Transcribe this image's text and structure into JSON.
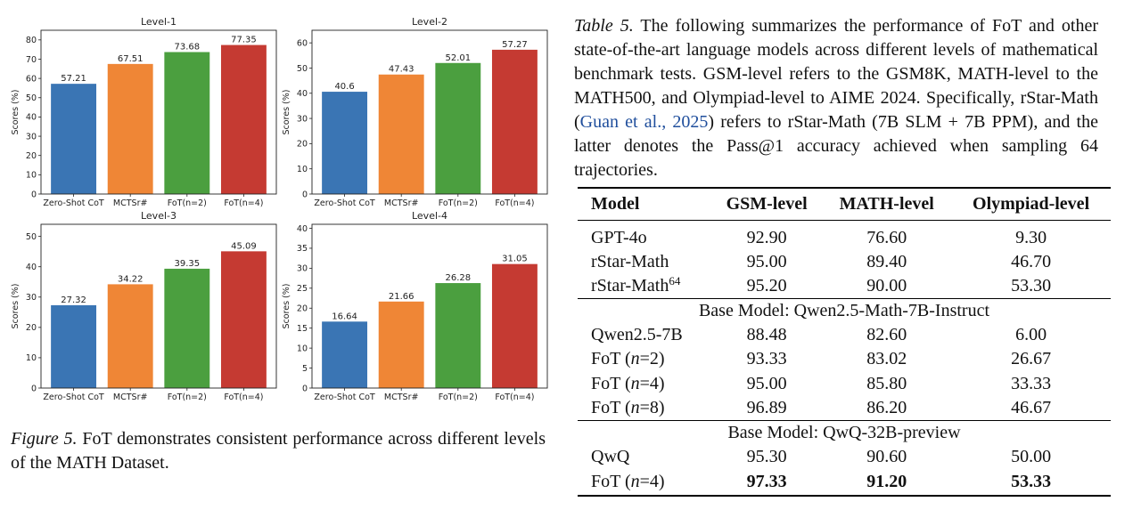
{
  "chart_data": [
    {
      "type": "bar",
      "title": "Level-1",
      "ylabel": "Scores (%)",
      "categories": [
        "Zero-Shot CoT",
        "MCTSr#",
        "FoT(n=2)",
        "FoT(n=4)"
      ],
      "values": [
        57.21,
        67.51,
        73.68,
        77.35
      ],
      "value_labels": [
        "57.21",
        "67.51",
        "73.68",
        "77.35"
      ],
      "colors": [
        "#3a75b4",
        "#ef8636",
        "#4b9f3f",
        "#c53a32"
      ],
      "ylim": [
        0,
        85
      ],
      "yticks": [
        0,
        10,
        20,
        30,
        40,
        50,
        60,
        70,
        80
      ],
      "grid": false
    },
    {
      "type": "bar",
      "title": "Level-2",
      "ylabel": "Scores (%)",
      "categories": [
        "Zero-Shot CoT",
        "MCTSr#",
        "FoT(n=2)",
        "FoT(n=4)"
      ],
      "values": [
        40.6,
        47.43,
        52.01,
        57.27
      ],
      "value_labels": [
        "40.6",
        "47.43",
        "52.01",
        "57.27"
      ],
      "colors": [
        "#3a75b4",
        "#ef8636",
        "#4b9f3f",
        "#c53a32"
      ],
      "ylim": [
        0,
        65
      ],
      "yticks": [
        0,
        10,
        20,
        30,
        40,
        50,
        60
      ],
      "grid": false
    },
    {
      "type": "bar",
      "title": "Level-3",
      "ylabel": "Scores (%)",
      "categories": [
        "Zero-Shot CoT",
        "MCTSr#",
        "FoT(n=2)",
        "FoT(n=4)"
      ],
      "values": [
        27.32,
        34.22,
        39.35,
        45.09
      ],
      "value_labels": [
        "27.32",
        "34.22",
        "39.35",
        "45.09"
      ],
      "colors": [
        "#3a75b4",
        "#ef8636",
        "#4b9f3f",
        "#c53a32"
      ],
      "ylim": [
        0,
        54
      ],
      "yticks": [
        0,
        10,
        20,
        30,
        40,
        50
      ],
      "grid": false
    },
    {
      "type": "bar",
      "title": "Level-4",
      "ylabel": "Scores (%)",
      "categories": [
        "Zero-Shot CoT",
        "MCTSr#",
        "FoT(n=2)",
        "FoT(n=4)"
      ],
      "values": [
        16.64,
        21.66,
        26.28,
        31.05
      ],
      "value_labels": [
        "16.64",
        "21.66",
        "26.28",
        "31.05"
      ],
      "colors": [
        "#3a75b4",
        "#ef8636",
        "#4b9f3f",
        "#c53a32"
      ],
      "ylim": [
        0,
        41
      ],
      "yticks": [
        0,
        5,
        10,
        15,
        20,
        25,
        30,
        35,
        40
      ],
      "grid": false
    }
  ],
  "figure_caption": {
    "lead": "Figure 5.",
    "text": " FoT demonstrates consistent performance across different levels of the MATH Dataset."
  },
  "table_caption": {
    "lead": "Table 5.",
    "text_before": " The following summarizes the performance of FoT and other state-of-the-art language models across different levels of mathematical benchmark tests. GSM-level refers to the GSM8K, MATH-level to the MATH500, and Olympiad-level to AIME 2024. Specifically, rStar-Math (",
    "citation": "Guan et al., 2025",
    "text_after": ") refers to rStar-Math (7B SLM + 7B PPM), and the latter denotes the Pass@1 accuracy achieved when sampling 64 trajectories."
  },
  "table": {
    "headers": [
      "Model",
      "GSM-level",
      "MATH-level",
      "Olympiad-level"
    ],
    "group1": [
      {
        "model": "GPT-4o",
        "gsm": "92.90",
        "math": "76.60",
        "olympiad": "9.30"
      },
      {
        "model": "rStar-Math",
        "gsm": "95.00",
        "math": "89.40",
        "olympiad": "46.70"
      },
      {
        "model": "rStar-Math",
        "sup": "64",
        "gsm": "95.20",
        "math": "90.00",
        "olympiad": "53.30"
      }
    ],
    "section2_title": "Base Model: Qwen2.5-Math-7B-Instruct",
    "group2": [
      {
        "model": "Qwen2.5-7B",
        "gsm": "88.48",
        "math": "82.60",
        "olympiad": "6.00"
      },
      {
        "model_prefix": "FoT (",
        "model_var": "n",
        "model_suffix": "=2)",
        "gsm": "93.33",
        "math": "83.02",
        "olympiad": "26.67"
      },
      {
        "model_prefix": "FoT (",
        "model_var": "n",
        "model_suffix": "=4)",
        "gsm": "95.00",
        "math": "85.80",
        "olympiad": "33.33"
      },
      {
        "model_prefix": "FoT (",
        "model_var": "n",
        "model_suffix": "=8)",
        "gsm": "96.89",
        "math": "86.20",
        "olympiad": "46.67"
      }
    ],
    "section3_title": "Base Model: QwQ-32B-preview",
    "group3": [
      {
        "model": "QwQ",
        "gsm": "95.30",
        "math": "90.60",
        "olympiad": "50.00"
      },
      {
        "model_prefix": "FoT (",
        "model_var": "n",
        "model_suffix": "=4)",
        "gsm": "97.33",
        "math": "91.20",
        "olympiad": "53.33"
      }
    ]
  }
}
